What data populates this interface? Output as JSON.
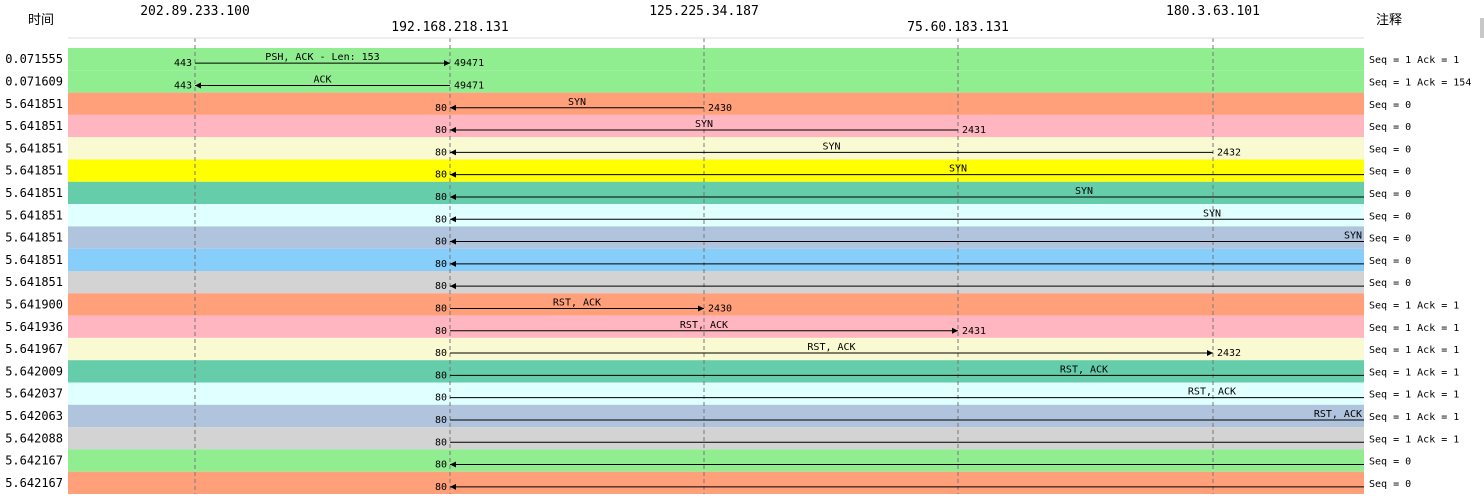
{
  "header": {
    "time_label": "时间",
    "note_label": "注释"
  },
  "hosts": [
    "202.89.233.100",
    "192.168.218.131",
    "125.225.34.187",
    "75.60.183.131",
    "180.3.63.101"
  ],
  "rows": [
    {
      "time": "0.071555",
      "color": "#90ee90",
      "from": 0,
      "to": 1,
      "dir": "right",
      "src_port": "443",
      "dst_port": "49471",
      "msg": "PSH, ACK - Len: 153",
      "note": "Seq = 1 Ack = 1"
    },
    {
      "time": "0.071609",
      "color": "#90ee90",
      "from": 0,
      "to": 1,
      "dir": "left",
      "src_port": "443",
      "dst_port": "49471",
      "msg": "ACK",
      "note": "Seq = 1 Ack = 154"
    },
    {
      "time": "5.641851",
      "color": "#ffa07a",
      "from": 1,
      "to": 2,
      "dir": "left",
      "src_port": "80",
      "dst_port": "2430",
      "msg": "SYN",
      "note": "Seq = 0"
    },
    {
      "time": "5.641851",
      "color": "#ffb6c1",
      "from": 1,
      "to": 3,
      "dir": "left",
      "src_port": "80",
      "dst_port": "2431",
      "msg": "SYN",
      "note": "Seq = 0"
    },
    {
      "time": "5.641851",
      "color": "#fafad2",
      "from": 1,
      "to": 4,
      "dir": "left",
      "src_port": "80",
      "dst_port": "2432",
      "msg": "SYN",
      "note": "Seq = 0"
    },
    {
      "time": "5.641851",
      "color": "#ffff00",
      "from": 1,
      "to": 5,
      "dir": "left",
      "src_port": "80",
      "dst_port": "",
      "msg": "SYN",
      "note": "Seq = 0"
    },
    {
      "time": "5.641851",
      "color": "#66cdaa",
      "from": 1,
      "to": 6,
      "dir": "left",
      "src_port": "80",
      "dst_port": "",
      "msg": "SYN",
      "note": "Seq = 0"
    },
    {
      "time": "5.641851",
      "color": "#e0ffff",
      "from": 1,
      "to": 7,
      "dir": "left",
      "src_port": "80",
      "dst_port": "",
      "msg": "SYN",
      "note": "Seq = 0"
    },
    {
      "time": "5.641851",
      "color": "#b0c4de",
      "from": 1,
      "to": 8,
      "dir": "left",
      "src_port": "80",
      "dst_port": "",
      "msg": "SYN",
      "note": "Seq = 0"
    },
    {
      "time": "5.641851",
      "color": "#87cefa",
      "from": 1,
      "to": 9,
      "dir": "left",
      "src_port": "80",
      "dst_port": "",
      "msg": "",
      "note": "Seq = 0"
    },
    {
      "time": "5.641851",
      "color": "#d3d3d3",
      "from": 1,
      "to": 10,
      "dir": "left",
      "src_port": "80",
      "dst_port": "",
      "msg": "",
      "note": "Seq = 0"
    },
    {
      "time": "5.641900",
      "color": "#ffa07a",
      "from": 1,
      "to": 2,
      "dir": "right",
      "src_port": "80",
      "dst_port": "2430",
      "msg": "RST, ACK",
      "note": "Seq = 1 Ack = 1"
    },
    {
      "time": "5.641936",
      "color": "#ffb6c1",
      "from": 1,
      "to": 3,
      "dir": "right",
      "src_port": "80",
      "dst_port": "2431",
      "msg": "RST, ACK",
      "note": "Seq = 1 Ack = 1"
    },
    {
      "time": "5.641967",
      "color": "#fafad2",
      "from": 1,
      "to": 4,
      "dir": "right",
      "src_port": "80",
      "dst_port": "2432",
      "msg": "RST, ACK",
      "note": "Seq = 1 Ack = 1"
    },
    {
      "time": "5.642009",
      "color": "#66cdaa",
      "from": 1,
      "to": 6,
      "dir": "right",
      "src_port": "80",
      "dst_port": "",
      "msg": "RST, ACK",
      "note": "Seq = 1 Ack = 1"
    },
    {
      "time": "5.642037",
      "color": "#e0ffff",
      "from": 1,
      "to": 7,
      "dir": "right",
      "src_port": "80",
      "dst_port": "",
      "msg": "RST, ACK",
      "note": "Seq = 1 Ack = 1"
    },
    {
      "time": "5.642063",
      "color": "#b0c4de",
      "from": 1,
      "to": 8,
      "dir": "right",
      "src_port": "80",
      "dst_port": "",
      "msg": "RST, ACK",
      "note": "Seq = 1 Ack = 1"
    },
    {
      "time": "5.642088",
      "color": "#d3d3d3",
      "from": 1,
      "to": 10,
      "dir": "right",
      "src_port": "80",
      "dst_port": "",
      "msg": "",
      "note": "Seq = 1 Ack = 1"
    },
    {
      "time": "5.642167",
      "color": "#90ee90",
      "from": 1,
      "to": 9,
      "dir": "left",
      "src_port": "80",
      "dst_port": "",
      "msg": "",
      "note": "Seq = 0"
    },
    {
      "time": "5.642167",
      "color": "#ffa07a",
      "from": 1,
      "to": 9,
      "dir": "left",
      "src_port": "80",
      "dst_port": "",
      "msg": "",
      "note": "Seq = 0"
    }
  ]
}
